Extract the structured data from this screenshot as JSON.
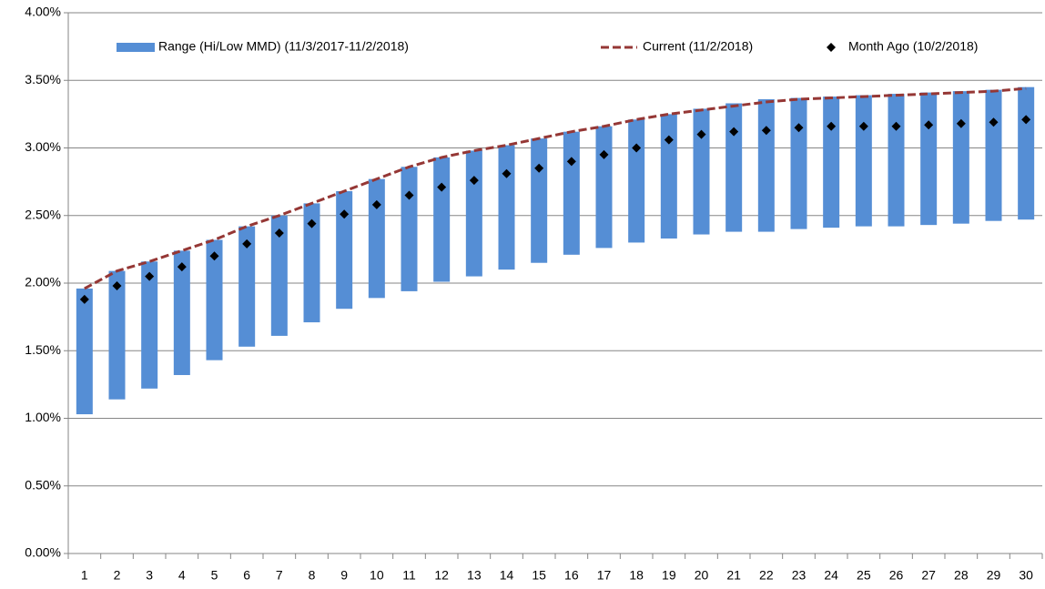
{
  "chart_data": {
    "type": "bar",
    "categories": [
      "1",
      "2",
      "3",
      "4",
      "5",
      "6",
      "7",
      "8",
      "9",
      "10",
      "11",
      "12",
      "13",
      "14",
      "15",
      "16",
      "17",
      "18",
      "19",
      "20",
      "21",
      "22",
      "23",
      "24",
      "25",
      "26",
      "27",
      "28",
      "29",
      "30"
    ],
    "series": [
      {
        "name": "Range (Hi/Low MMD) (11/3/2017-11/2/2018)",
        "color": "#558ed5",
        "type": "range",
        "low": [
          1.03,
          1.14,
          1.22,
          1.32,
          1.43,
          1.53,
          1.61,
          1.71,
          1.81,
          1.89,
          1.94,
          2.01,
          2.05,
          2.1,
          2.15,
          2.21,
          2.26,
          2.3,
          2.33,
          2.36,
          2.38,
          2.38,
          2.4,
          2.41,
          2.42,
          2.42,
          2.43,
          2.44,
          2.46,
          2.47
        ],
        "high": [
          1.96,
          2.09,
          2.16,
          2.24,
          2.32,
          2.42,
          2.5,
          2.59,
          2.68,
          2.77,
          2.86,
          2.93,
          2.98,
          3.02,
          3.07,
          3.12,
          3.16,
          3.21,
          3.25,
          3.29,
          3.33,
          3.36,
          3.37,
          3.38,
          3.39,
          3.4,
          3.41,
          3.42,
          3.43,
          3.45
        ]
      },
      {
        "name": "Current (11/2/2018)",
        "color": "#953735",
        "type": "line",
        "values": [
          1.96,
          2.09,
          2.16,
          2.24,
          2.32,
          2.42,
          2.5,
          2.59,
          2.68,
          2.77,
          2.86,
          2.93,
          2.98,
          3.02,
          3.07,
          3.12,
          3.16,
          3.21,
          3.25,
          3.28,
          3.31,
          3.34,
          3.36,
          3.37,
          3.38,
          3.39,
          3.4,
          3.41,
          3.42,
          3.44
        ]
      },
      {
        "name": "Month Ago (10/2/2018)",
        "color": "#000000",
        "type": "scatter",
        "values": [
          1.88,
          1.98,
          2.05,
          2.12,
          2.2,
          2.29,
          2.37,
          2.44,
          2.51,
          2.58,
          2.65,
          2.71,
          2.76,
          2.81,
          2.85,
          2.9,
          2.95,
          3.0,
          3.06,
          3.1,
          3.12,
          3.13,
          3.15,
          3.16,
          3.16,
          3.16,
          3.17,
          3.18,
          3.19,
          3.21
        ]
      }
    ],
    "ylim": [
      0,
      4
    ],
    "yticks": [
      {
        "value": 0,
        "label": "0.00%"
      },
      {
        "value": 0.5,
        "label": "0.50%"
      },
      {
        "value": 1,
        "label": "1.00%"
      },
      {
        "value": 1.5,
        "label": "1.50%"
      },
      {
        "value": 2,
        "label": "2.00%"
      },
      {
        "value": 2.5,
        "label": "2.50%"
      },
      {
        "value": 3,
        "label": "3.00%"
      },
      {
        "value": 3.5,
        "label": "3.50%"
      },
      {
        "value": 4,
        "label": "4.00%"
      }
    ],
    "grid": true,
    "legend": "top"
  }
}
